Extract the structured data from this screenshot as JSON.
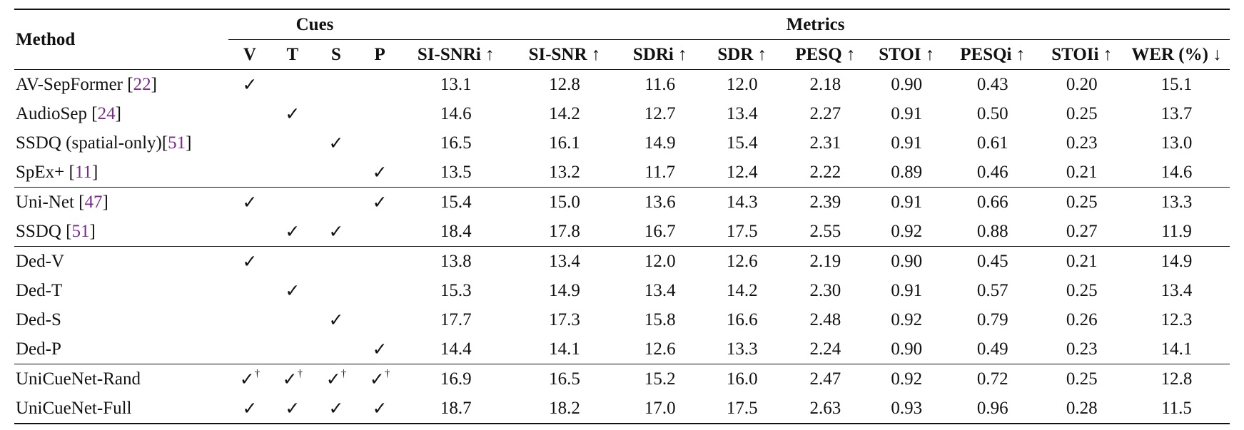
{
  "header": {
    "method": "Method",
    "cues_group": "Cues",
    "metrics_group": "Metrics",
    "cue_columns": [
      "V",
      "T",
      "S",
      "P"
    ],
    "metric_columns": [
      "SI-SNRi ↑",
      "SI-SNR ↑",
      "SDRi ↑",
      "SDR ↑",
      "PESQ ↑",
      "STOI ↑",
      "PESQi ↑",
      "STOIi ↑",
      "WER (%) ↓"
    ]
  },
  "rows": [
    {
      "name": "AV-SepFormer [",
      "ref": "22",
      "close": "]",
      "cues": [
        "✓",
        "",
        "",
        ""
      ],
      "values": [
        "13.1",
        "12.8",
        "11.6",
        "12.0",
        "2.18",
        "0.90",
        "0.43",
        "0.20",
        "15.1"
      ],
      "bold": false
    },
    {
      "name": "AudioSep [",
      "ref": "24",
      "close": "]",
      "cues": [
        "",
        "✓",
        "",
        ""
      ],
      "values": [
        "14.6",
        "14.2",
        "12.7",
        "13.4",
        "2.27",
        "0.91",
        "0.50",
        "0.25",
        "13.7"
      ],
      "bold": false
    },
    {
      "name": "SSDQ (spatial-only)[",
      "ref": "51",
      "close": "]",
      "cues": [
        "",
        "",
        "✓",
        ""
      ],
      "values": [
        "16.5",
        "16.1",
        "14.9",
        "15.4",
        "2.31",
        "0.91",
        "0.61",
        "0.23",
        "13.0"
      ],
      "bold": false
    },
    {
      "name": "SpEx+ [",
      "ref": "11",
      "close": "]",
      "cues": [
        "",
        "",
        "",
        "✓"
      ],
      "values": [
        "13.5",
        "13.2",
        "11.7",
        "12.4",
        "2.22",
        "0.89",
        "0.46",
        "0.21",
        "14.6"
      ],
      "bold": false
    },
    {
      "name": "Uni-Net [",
      "ref": "47",
      "close": "]",
      "cues": [
        "✓",
        "",
        "",
        "✓"
      ],
      "values": [
        "15.4",
        "15.0",
        "13.6",
        "14.3",
        "2.39",
        "0.91",
        "0.66",
        "0.25",
        "13.3"
      ],
      "bold": false
    },
    {
      "name": "SSDQ [",
      "ref": "51",
      "close": "]",
      "cues": [
        "",
        "✓",
        "✓",
        ""
      ],
      "values": [
        "18.4",
        "17.8",
        "16.7",
        "17.5",
        "2.55",
        "0.92",
        "0.88",
        "0.27",
        "11.9"
      ],
      "bold": false
    },
    {
      "name": "Ded-V",
      "ref": "",
      "close": "",
      "cues": [
        "✓",
        "",
        "",
        ""
      ],
      "values": [
        "13.8",
        "13.4",
        "12.0",
        "12.6",
        "2.19",
        "0.90",
        "0.45",
        "0.21",
        "14.9"
      ],
      "bold": false
    },
    {
      "name": "Ded-T",
      "ref": "",
      "close": "",
      "cues": [
        "",
        "✓",
        "",
        ""
      ],
      "values": [
        "15.3",
        "14.9",
        "13.4",
        "14.2",
        "2.30",
        "0.91",
        "0.57",
        "0.25",
        "13.4"
      ],
      "bold": false
    },
    {
      "name": "Ded-S",
      "ref": "",
      "close": "",
      "cues": [
        "",
        "",
        "✓",
        ""
      ],
      "values": [
        "17.7",
        "17.3",
        "15.8",
        "16.6",
        "2.48",
        "0.92",
        "0.79",
        "0.26",
        "12.3"
      ],
      "bold": false
    },
    {
      "name": "Ded-P",
      "ref": "",
      "close": "",
      "cues": [
        "",
        "",
        "",
        "✓"
      ],
      "values": [
        "14.4",
        "14.1",
        "12.6",
        "13.3",
        "2.24",
        "0.90",
        "0.49",
        "0.23",
        "14.1"
      ],
      "bold": false
    },
    {
      "name": "UniCueNet-Rand",
      "ref": "",
      "close": "",
      "cues": [
        "✓",
        "✓",
        "✓",
        "✓"
      ],
      "dagger": "†",
      "values": [
        "16.9",
        "16.5",
        "15.2",
        "16.0",
        "2.47",
        "0.92",
        "0.72",
        "0.25",
        "12.8"
      ],
      "bold": false
    },
    {
      "name": "UniCueNet-Full",
      "ref": "",
      "close": "",
      "cues": [
        "✓",
        "✓",
        "✓",
        "✓"
      ],
      "values": [
        "18.7",
        "18.2",
        "17.0",
        "17.5",
        "2.63",
        "0.93",
        "0.96",
        "0.28",
        "11.5"
      ],
      "bold": true
    }
  ]
}
